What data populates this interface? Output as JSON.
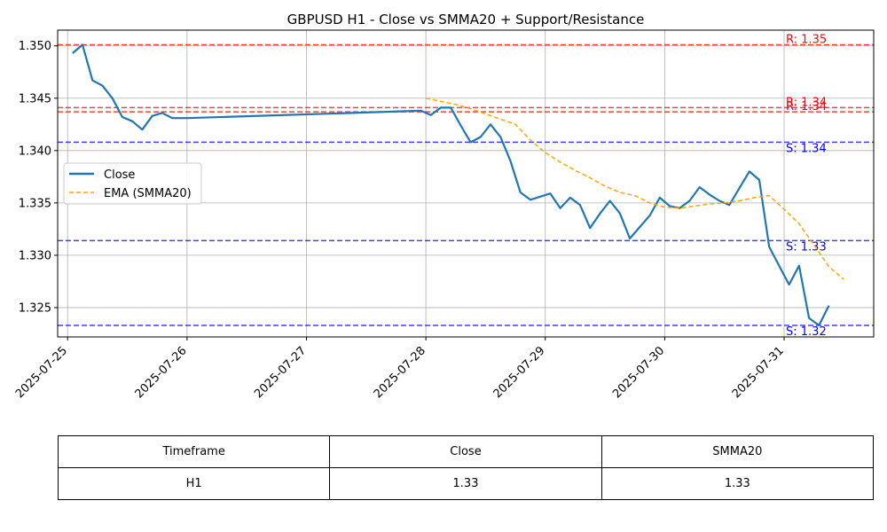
{
  "chart_data": {
    "type": "line",
    "title": "GBPUSD H1 - Close vs SMMA20 + Support/Resistance",
    "xlabel": "",
    "ylabel": "",
    "xlim": [
      "2025-07-24T22:00",
      "2025-07-31T18:00"
    ],
    "ylim": [
      1.3222,
      1.3515
    ],
    "x_ticks": [
      "2025-07-25",
      "2025-07-26",
      "2025-07-27",
      "2025-07-28",
      "2025-07-29",
      "2025-07-30",
      "2025-07-31"
    ],
    "y_ticks": [
      "1.325",
      "1.330",
      "1.335",
      "1.340",
      "1.345",
      "1.350"
    ],
    "grid": true,
    "legend_position": "center-left",
    "series": [
      {
        "name": "Close",
        "color": "#1f77b4",
        "style": "solid",
        "x": [
          "2025-07-25T01:00",
          "2025-07-25T03:00",
          "2025-07-25T05:00",
          "2025-07-25T07:00",
          "2025-07-25T09:00",
          "2025-07-25T11:00",
          "2025-07-25T13:00",
          "2025-07-25T15:00",
          "2025-07-25T17:00",
          "2025-07-25T19:00",
          "2025-07-25T21:00",
          "2025-07-26T00:00",
          "2025-07-27T23:00",
          "2025-07-28T01:00",
          "2025-07-28T03:00",
          "2025-07-28T05:00",
          "2025-07-28T07:00",
          "2025-07-28T09:00",
          "2025-07-28T11:00",
          "2025-07-28T13:00",
          "2025-07-28T15:00",
          "2025-07-28T17:00",
          "2025-07-28T19:00",
          "2025-07-28T21:00",
          "2025-07-28T23:00",
          "2025-07-29T01:00",
          "2025-07-29T03:00",
          "2025-07-29T05:00",
          "2025-07-29T07:00",
          "2025-07-29T09:00",
          "2025-07-29T11:00",
          "2025-07-29T13:00",
          "2025-07-29T15:00",
          "2025-07-29T17:00",
          "2025-07-29T19:00",
          "2025-07-29T21:00",
          "2025-07-29T23:00",
          "2025-07-30T01:00",
          "2025-07-30T03:00",
          "2025-07-30T05:00",
          "2025-07-30T07:00",
          "2025-07-30T09:00",
          "2025-07-30T11:00",
          "2025-07-30T13:00",
          "2025-07-30T15:00",
          "2025-07-30T17:00",
          "2025-07-30T19:00",
          "2025-07-30T21:00",
          "2025-07-30T23:00",
          "2025-07-31T01:00",
          "2025-07-31T03:00",
          "2025-07-31T05:00",
          "2025-07-31T07:00",
          "2025-07-31T09:00"
        ],
        "y": [
          1.3493,
          1.3501,
          1.3467,
          1.3462,
          1.345,
          1.3432,
          1.3428,
          1.342,
          1.3433,
          1.3436,
          1.3431,
          1.3431,
          1.3438,
          1.3434,
          1.3441,
          1.3441,
          1.3424,
          1.3408,
          1.3413,
          1.3425,
          1.3413,
          1.339,
          1.336,
          1.3353,
          1.3356,
          1.3359,
          1.3345,
          1.3355,
          1.3348,
          1.3326,
          1.334,
          1.3352,
          1.334,
          1.3316,
          1.3327,
          1.3338,
          1.3355,
          1.3347,
          1.3345,
          1.3352,
          1.3365,
          1.3358,
          1.3352,
          1.3348,
          1.3364,
          1.338,
          1.3372,
          1.3308,
          1.329,
          1.3272,
          1.329,
          1.324,
          1.3233,
          1.3252
        ]
      },
      {
        "name": "EMA (SMMA20)",
        "color": "#ffa500",
        "style": "dashed",
        "x": [
          "2025-07-28T00:00",
          "2025-07-28T03:00",
          "2025-07-28T06:00",
          "2025-07-28T09:00",
          "2025-07-28T12:00",
          "2025-07-28T15:00",
          "2025-07-28T18:00",
          "2025-07-28T21:00",
          "2025-07-29T00:00",
          "2025-07-29T03:00",
          "2025-07-29T06:00",
          "2025-07-29T09:00",
          "2025-07-29T12:00",
          "2025-07-29T15:00",
          "2025-07-29T18:00",
          "2025-07-29T21:00",
          "2025-07-30T00:00",
          "2025-07-30T03:00",
          "2025-07-30T06:00",
          "2025-07-30T09:00",
          "2025-07-30T12:00",
          "2025-07-30T15:00",
          "2025-07-30T18:00",
          "2025-07-30T21:00",
          "2025-07-31T00:00",
          "2025-07-31T03:00",
          "2025-07-31T06:00",
          "2025-07-31T09:00",
          "2025-07-31T12:00"
        ],
        "y": [
          1.345,
          1.3447,
          1.3444,
          1.344,
          1.3435,
          1.343,
          1.3425,
          1.341,
          1.3398,
          1.3389,
          1.3381,
          1.3374,
          1.3366,
          1.336,
          1.3357,
          1.335,
          1.3346,
          1.3345,
          1.3347,
          1.3349,
          1.335,
          1.3352,
          1.3355,
          1.3357,
          1.3344,
          1.333,
          1.331,
          1.3289,
          1.3277
        ]
      }
    ],
    "levels": [
      {
        "kind": "resistance",
        "value": 1.3501,
        "label": "R: 1.35",
        "color": "#ff0000"
      },
      {
        "kind": "resistance",
        "value": 1.3441,
        "label": "R: 1.34",
        "color": "#ff0000"
      },
      {
        "kind": "resistance",
        "value": 1.3437,
        "label": "R: 1.34",
        "color": "#ff0000"
      },
      {
        "kind": "support",
        "value": 1.3408,
        "label": "S: 1.34",
        "color": "#0000ff"
      },
      {
        "kind": "support",
        "value": 1.3314,
        "label": "S: 1.33",
        "color": "#0000ff"
      },
      {
        "kind": "support",
        "value": 1.3233,
        "label": "S: 1.32",
        "color": "#0000ff"
      }
    ]
  },
  "table": {
    "headers": [
      "Timeframe",
      "Close",
      "SMMA20"
    ],
    "row": [
      "H1",
      "1.33",
      "1.33"
    ]
  }
}
